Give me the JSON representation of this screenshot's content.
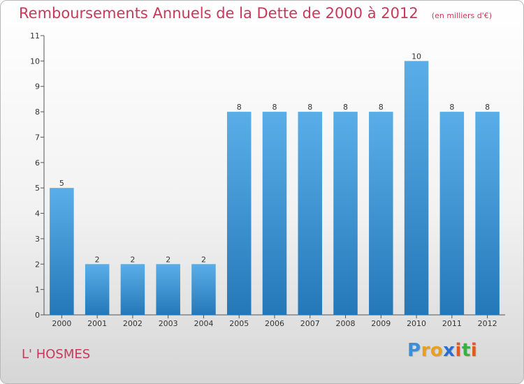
{
  "title": "Remboursements Annuels de la Dette de 2000 à 2012",
  "unit": "(en milliers d'€)",
  "commune": "L' HOSMES",
  "logo": {
    "text": "Proxiti",
    "letter_colors": [
      "#3a8fd8",
      "#e8a020",
      "#e8a020",
      "#2a6fd0",
      "#e05a20",
      "#3ab040",
      "#e05a20"
    ]
  },
  "colors": {
    "title": "#c8385a",
    "bar_top": "#5aaee8",
    "bar_bottom": "#2478b8"
  },
  "chart_data": {
    "type": "bar",
    "categories": [
      "2000",
      "2001",
      "2002",
      "2003",
      "2004",
      "2005",
      "2006",
      "2007",
      "2008",
      "2009",
      "2010",
      "2011",
      "2012"
    ],
    "values": [
      5,
      2,
      2,
      2,
      2,
      8,
      8,
      8,
      8,
      8,
      10,
      8,
      8
    ],
    "data_labels": [
      "5",
      "2",
      "2",
      "2",
      "2",
      "8",
      "8",
      "8",
      "8",
      "8",
      "10",
      "8",
      "8"
    ],
    "yticks": [
      "0",
      "1",
      "2",
      "3",
      "4",
      "5",
      "6",
      "7",
      "8",
      "9",
      "10",
      "11"
    ],
    "ylim": [
      0,
      11
    ],
    "grid": false
  }
}
